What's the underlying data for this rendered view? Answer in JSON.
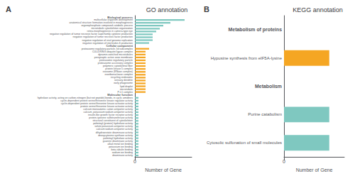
{
  "chart_data": [
    {
      "type": "bar",
      "orientation": "horizontal",
      "title": "GO annotation",
      "xlabel": "Number of Gene",
      "annotation": "A",
      "categories": [
        "Biological process",
        "multicellular organism development",
        "anatomical structure formation involved in morphogenesis",
        "organophosphate compound catabolic process",
        "microtubule cytoskeleton organization",
        "retina morphogenesis in camera-type eye",
        "negative regulation of tumor necrosis factor superfamily cytokine production",
        "negative regulation of tumor necrosis factor production",
        "negative regulation of viral genome replication",
        "negative regulation of interleukin-6 production",
        "Cellular component",
        "proteasome regulatory particle, lid subcomplex",
        "CUL4-RING ubiquitin ligase complex",
        "dynamin-switched microtubules",
        "presynaptic active zone membrane",
        "proteasome regulatory particle",
        "proteasome accessory complex",
        "polymeric cytoskeletal fiber",
        "protein kinase 5 complex",
        "exosome (RNase complex)",
        "exoribonuclease complex",
        "recycling endosome",
        "sensory dendrite",
        "early phagosome",
        "lipid droplet",
        "microtubule",
        "P-L1 complex",
        "Molecular function",
        "hydrolase activity, acting on carbon-nitrogen (but not peptide) bonds, in cyclic amidines",
        "cyclin-dependent protein serine/threonine kinase regulator activity",
        "cyclin-dependent protein serine/threonine kinase activator activity",
        "protein serine/threonine kinase activator activity",
        "calcium:monoatomic cation antiporter activity",
        "calcium, potassium:sodium antiporter activity",
        "insulin-like growth factor receptor activity",
        "protein-tyrosine sulfotransferase activity",
        "structural constituent of cytoskeleton",
        "palmitoyl-(protein) hydrolase activity",
        "solute:potassium antiporter activity",
        "calcium:sodium antiporter activity",
        "dihydroorotate deaminase activity",
        "deoxycytosine synthase activity",
        "palmitoyl hydrolase activity",
        "guanine deaminase activity",
        "alkali metal ion binding",
        "potassium ion binding",
        "beta-tubulin binding",
        "sodium ion binding",
        "deaminase activity"
      ],
      "values": [
        null,
        14,
        10,
        8,
        7,
        6,
        5,
        5,
        5,
        4,
        null,
        4,
        3,
        3,
        3,
        3,
        3,
        3,
        3,
        3,
        3,
        3,
        3,
        3,
        3,
        3,
        3,
        null,
        1,
        1,
        1,
        1,
        1,
        1,
        1,
        1,
        1,
        1,
        1,
        1,
        1,
        1,
        1,
        1,
        1,
        1,
        1,
        1,
        1
      ],
      "colors": [
        null,
        "#7fc8c0",
        "#7fc8c0",
        "#7fc8c0",
        "#7fc8c0",
        "#7fc8c0",
        "#7fc8c0",
        "#7fc8c0",
        "#7fc8c0",
        "#7fc8c0",
        null,
        "#f5a623",
        "#f5a623",
        "#f5a623",
        "#f5a623",
        "#f5a623",
        "#f5a623",
        "#f5a623",
        "#f5a623",
        "#f5a623",
        "#f5a623",
        "#f5a623",
        "#f5a623",
        "#f5a623",
        "#f5a623",
        "#f5a623",
        "#f5a623",
        null,
        "#7fc8c0",
        "#7fc8c0",
        "#7fc8c0",
        "#7fc8c0",
        "#7fc8c0",
        "#7fc8c0",
        "#7fc8c0",
        "#7fc8c0",
        "#7fc8c0",
        "#7fc8c0",
        "#7fc8c0",
        "#7fc8c0",
        "#7fc8c0",
        "#7fc8c0",
        "#7fc8c0",
        "#7fc8c0",
        "#7fc8c0",
        "#7fc8c0",
        "#7fc8c0",
        "#7fc8c0",
        "#7fc8c0"
      ],
      "xlim": [
        0,
        16
      ],
      "xticks": [
        0
      ],
      "grid": true
    },
    {
      "type": "bar",
      "orientation": "horizontal",
      "title": "KEGG annotation",
      "xlabel": "Number of Gene",
      "annotation": "B",
      "categories": [
        "Metabolism of proteins",
        "Hypusine synthesis from eIF5A-lysine",
        "Metabolism",
        "Purine catabolism",
        "Cytosolic sulfonation of small molecules"
      ],
      "values": [
        null,
        3,
        null,
        3,
        3
      ],
      "colors": [
        null,
        "#f5a623",
        null,
        "#7fc8c0",
        "#7fc8c0"
      ],
      "xlim": [
        0,
        4
      ],
      "xticks": [
        0
      ],
      "grid": true
    }
  ]
}
